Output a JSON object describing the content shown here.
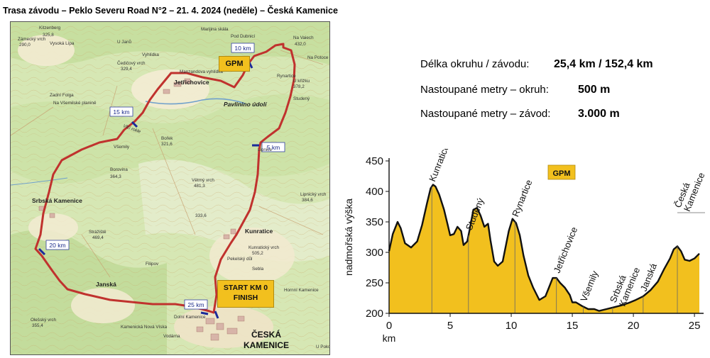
{
  "title": "Trasa závodu – Peklo Severu Road N°2 – 21. 4. 2024 (neděle) – Česká Kamenice",
  "stats": [
    {
      "label": "Délka okruhu / závodu:",
      "value": "25,4 km / 152,4 km"
    },
    {
      "label": "Nastoupané metry – okruh:",
      "value": "500 m"
    },
    {
      "label": "Nastoupané metry – závod:",
      "value": "3.000 m"
    }
  ],
  "map": {
    "km_markers": [
      "5 km",
      "10 km",
      "15 km",
      "20 km",
      "25 km"
    ],
    "gpm_label": "GPM",
    "start_label_1": "START KM 0",
    "start_label_2": "FINISH",
    "town_label_1": "ČESKÁ",
    "town_label_2": "KAMENICE",
    "places": [
      "Kitzenberg",
      "325,8",
      "Zámecký vrch",
      "290,0",
      "Vysoká Lípa",
      "U Janů",
      "Vyhlídka",
      "Čedičový vrch",
      "329,4",
      "Jetřichovice",
      "Marijina skála",
      "Pod Dubnicí",
      "Na Vaiech",
      "432,0",
      "Na Potoce",
      "Rynartice",
      "U křížku",
      "378,2",
      "Studený",
      "Pavlinino údolí",
      "Zadní Folga",
      "Na Všemilské planině",
      "Všemily",
      "Bořek",
      "321,6",
      "Borovina",
      "364,3",
      "Lipnice",
      "Větrný vrch",
      "481,3",
      "Lipnický vrch",
      "384,6",
      "Srbská Kamenice",
      "Strážiště",
      "469,4",
      "Kunratice",
      "Kunratický vrch",
      "505,2",
      "Filipov",
      "Pekelský důl",
      "Janská",
      "Hornní Kamenice",
      "Dolní Kamenice",
      "Olešský vrch",
      "355,4",
      "Kamenická Nová Víska",
      "Vlčí rokle",
      "Manzandova vyhlídka",
      "Sebla",
      "U Pokorní",
      "Vodárna",
      "333,6"
    ]
  },
  "chart_data": {
    "type": "area",
    "title": "",
    "xlabel": "km",
    "ylabel": "nadmořská výška",
    "xlim": [
      0,
      25.4
    ],
    "ylim": [
      200,
      450
    ],
    "xticks": [
      0,
      5,
      10,
      15,
      20,
      25
    ],
    "yticks": [
      200,
      250,
      300,
      350,
      400,
      450
    ],
    "fill_color": "#f2c01e",
    "line_color": "#111111",
    "grid": false,
    "gpm_label": "GPM",
    "x": [
      0,
      0.3,
      0.7,
      0.95,
      1.3,
      1.8,
      2.3,
      2.7,
      3.1,
      3.4,
      3.6,
      3.8,
      4.1,
      4.5,
      4.8,
      5.0,
      5.3,
      5.6,
      5.9,
      6.1,
      6.4,
      6.6,
      6.9,
      7.2,
      7.5,
      7.8,
      8.1,
      8.3,
      8.6,
      8.9,
      9.3,
      9.8,
      10.1,
      10.4,
      10.7,
      11.0,
      11.4,
      11.8,
      12.3,
      12.8,
      13.1,
      13.4,
      13.7,
      14.0,
      14.4,
      14.8,
      15.0,
      15.3,
      15.8,
      16.3,
      16.8,
      17.2,
      17.8,
      18.4,
      19.0,
      19.6,
      20.2,
      20.8,
      21.4,
      22.0,
      22.5,
      23.0,
      23.3,
      23.6,
      23.9,
      24.2,
      24.6,
      25.0,
      25.4
    ],
    "y": [
      302,
      330,
      350,
      340,
      315,
      308,
      318,
      345,
      380,
      405,
      411,
      408,
      395,
      370,
      345,
      328,
      330,
      342,
      335,
      312,
      318,
      338,
      370,
      373,
      360,
      342,
      347,
      320,
      285,
      278,
      285,
      335,
      355,
      348,
      328,
      295,
      262,
      242,
      222,
      228,
      243,
      258,
      258,
      250,
      242,
      230,
      218,
      218,
      212,
      207,
      207,
      204,
      207,
      210,
      213,
      217,
      222,
      228,
      238,
      252,
      272,
      290,
      305,
      310,
      302,
      288,
      286,
      290,
      298
    ],
    "annotations": [
      {
        "label": "Kunratice",
        "x": 3.5
      },
      {
        "label": "Studený",
        "x": 6.5
      },
      {
        "label": "Rynartice",
        "x": 10.3
      },
      {
        "label": "Jetřichovice",
        "x": 13.7
      },
      {
        "label": "Všemily",
        "x": 15.9
      },
      {
        "label": "Srbská Kamenice",
        "x": 18.3
      },
      {
        "label": "Janská",
        "x": 20.8
      },
      {
        "label": "Česká Kamenice",
        "x": 23.6
      }
    ]
  }
}
